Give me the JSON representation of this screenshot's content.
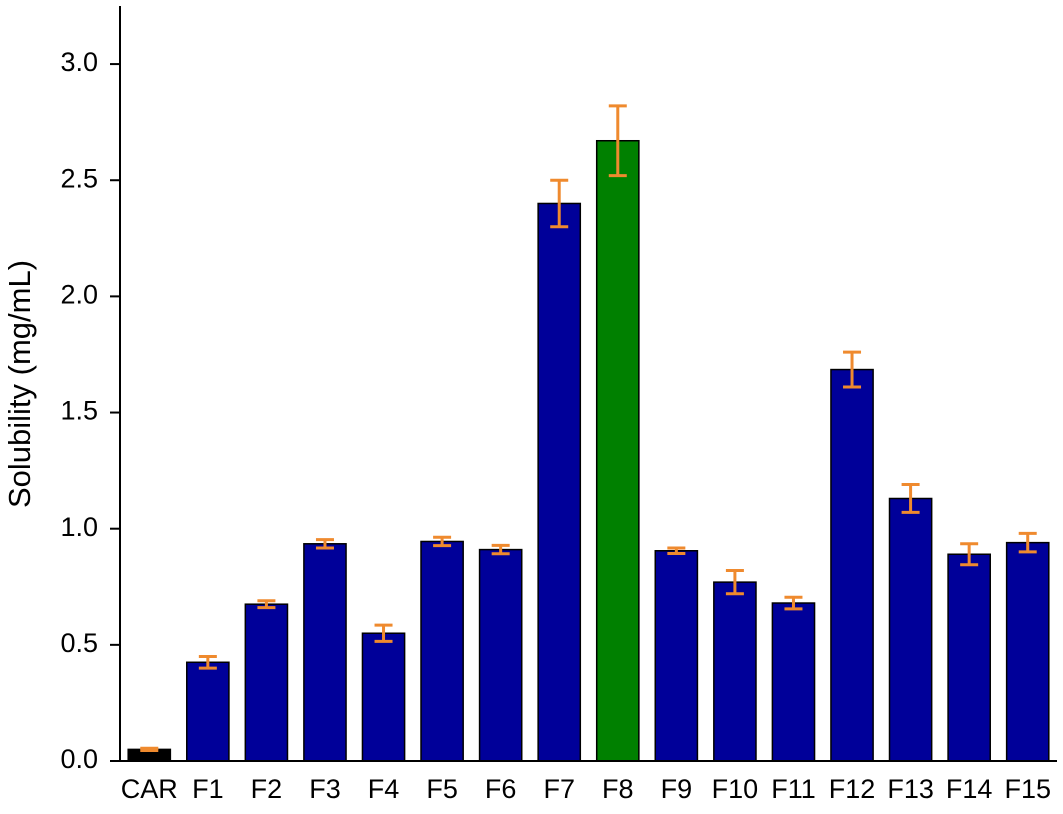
{
  "chart_data": {
    "type": "bar",
    "y_label": "Solubility (mg/mL)",
    "categories": [
      "CAR",
      "F1",
      "F2",
      "F3",
      "F4",
      "F5",
      "F6",
      "F7",
      "F8",
      "F9",
      "F10",
      "F11",
      "F12",
      "F13",
      "F14",
      "F15"
    ],
    "values": [
      0.05,
      0.425,
      0.675,
      0.935,
      0.55,
      0.945,
      0.91,
      2.4,
      2.67,
      0.905,
      0.77,
      0.68,
      1.685,
      1.13,
      0.89,
      0.94
    ],
    "errors": [
      0.005,
      0.025,
      0.015,
      0.018,
      0.035,
      0.018,
      0.018,
      0.1,
      0.15,
      0.012,
      0.05,
      0.025,
      0.075,
      0.06,
      0.045,
      0.04
    ],
    "colors": [
      "#000000",
      "#000099",
      "#000099",
      "#000099",
      "#000099",
      "#000099",
      "#000099",
      "#000099",
      "#008000",
      "#000099",
      "#000099",
      "#000099",
      "#000099",
      "#000099",
      "#000099",
      "#000099"
    ],
    "error_color": "#ef8a2e",
    "ylim": [
      0,
      3.25
    ],
    "yticks": [
      {
        "value": 0,
        "label": "0.0"
      },
      0.5,
      {
        "value": 1,
        "label": "1.0"
      },
      1.5,
      {
        "value": 2,
        "label": "2.0"
      },
      2.5,
      {
        "value": 3,
        "label": "3.0"
      }
    ]
  }
}
